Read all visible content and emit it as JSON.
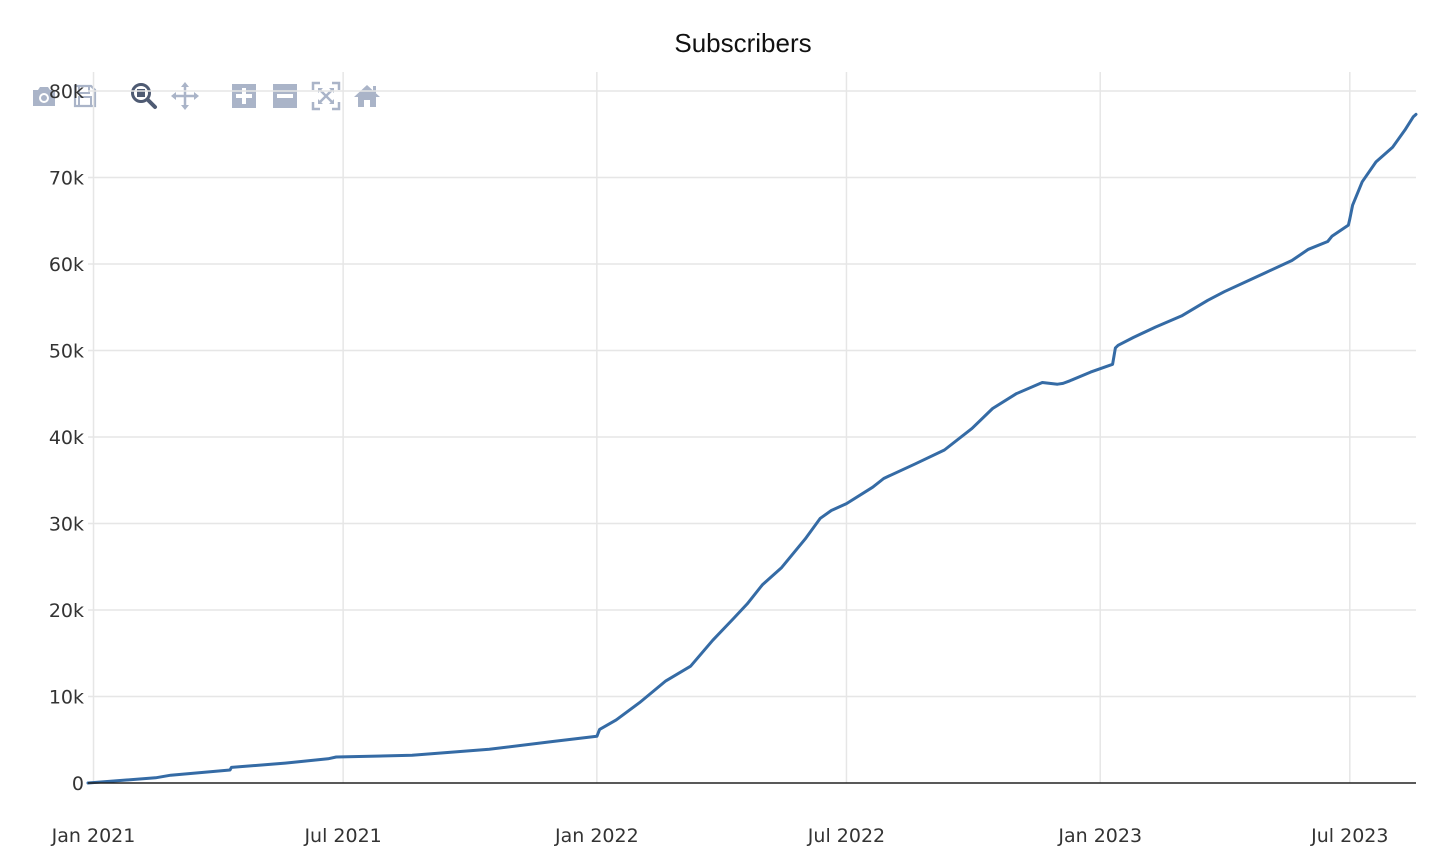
{
  "colors": {
    "series": "#356ba5",
    "modebar_icon": "#aab4c8",
    "modebar_active": "#4f5b73"
  },
  "modebar": {
    "buttons": [
      {
        "icon": "camera-icon",
        "title": "Download plot as a png"
      },
      {
        "icon": "save-icon",
        "title": "Save"
      },
      {
        "icon": "zoom-icon",
        "title": "Zoom",
        "active": true
      },
      {
        "icon": "pan-icon",
        "title": "Pan"
      },
      {
        "icon": "zoom-in-icon",
        "title": "Zoom in"
      },
      {
        "icon": "zoom-out-icon",
        "title": "Zoom out"
      },
      {
        "icon": "autoscale-icon",
        "title": "Autoscale"
      },
      {
        "icon": "home-icon",
        "title": "Reset axes"
      }
    ]
  },
  "chart_data": {
    "type": "line",
    "title": "Subscribers",
    "xlabel": "",
    "ylabel": "",
    "x_range": [
      "2020-12-28",
      "2023-08-18"
    ],
    "ylim": [
      0,
      80000
    ],
    "grid": true,
    "legend": "none",
    "x_ticks": [
      {
        "date": "2021-01-01",
        "label": "Jan 2021"
      },
      {
        "date": "2021-07-01",
        "label": "Jul 2021"
      },
      {
        "date": "2022-01-01",
        "label": "Jan 2022"
      },
      {
        "date": "2022-07-01",
        "label": "Jul 2022"
      },
      {
        "date": "2023-01-01",
        "label": "Jan 2023"
      },
      {
        "date": "2023-07-01",
        "label": "Jul 2023"
      }
    ],
    "y_ticks": [
      {
        "value": 0,
        "label": "0"
      },
      {
        "value": 10000,
        "label": "10k"
      },
      {
        "value": 20000,
        "label": "20k"
      },
      {
        "value": 30000,
        "label": "30k"
      },
      {
        "value": 40000,
        "label": "40k"
      },
      {
        "value": 50000,
        "label": "50k"
      },
      {
        "value": 60000,
        "label": "60k"
      },
      {
        "value": 70000,
        "label": "70k"
      },
      {
        "value": 80000,
        "label": "80k"
      }
    ],
    "series": [
      {
        "name": "Subscribers",
        "x": [
          "2020-12-28",
          "2021-02-15",
          "2021-02-26",
          "2021-04-10",
          "2021-04-11",
          "2021-05-20",
          "2021-06-20",
          "2021-06-26",
          "2021-08-20",
          "2021-10-15",
          "2021-11-30",
          "2022-01-01",
          "2022-01-03",
          "2022-01-15",
          "2022-02-01",
          "2022-02-20",
          "2022-03-10",
          "2022-03-26",
          "2022-04-10",
          "2022-04-20",
          "2022-05-01",
          "2022-05-15",
          "2022-06-01",
          "2022-06-12",
          "2022-06-20",
          "2022-07-01",
          "2022-07-20",
          "2022-07-28",
          "2022-08-01",
          "2022-08-20",
          "2022-09-10",
          "2022-09-30",
          "2022-10-15",
          "2022-11-01",
          "2022-11-20",
          "2022-12-01",
          "2022-12-05",
          "2022-12-10",
          "2022-12-25",
          "2023-01-10",
          "2023-01-12",
          "2023-01-14",
          "2023-01-25",
          "2023-02-10",
          "2023-03-01",
          "2023-03-20",
          "2023-04-01",
          "2023-04-20",
          "2023-05-01",
          "2023-05-20",
          "2023-06-01",
          "2023-06-15",
          "2023-06-18",
          "2023-06-30",
          "2023-07-01",
          "2023-07-03",
          "2023-07-10",
          "2023-07-20",
          "2023-08-01",
          "2023-08-10",
          "2023-08-16",
          "2023-08-18"
        ],
        "values": [
          0,
          600,
          900,
          1500,
          1800,
          2300,
          2800,
          3000,
          3200,
          3900,
          4800,
          5400,
          6200,
          7300,
          9300,
          11800,
          13500,
          16500,
          19000,
          20700,
          22900,
          24900,
          28200,
          30600,
          31500,
          32300,
          34200,
          35200,
          35500,
          36900,
          38500,
          41000,
          43300,
          45000,
          46300,
          46100,
          46200,
          46500,
          47500,
          48400,
          50300,
          50600,
          51500,
          52700,
          54000,
          55800,
          56800,
          58200,
          59000,
          60400,
          61700,
          62600,
          63200,
          64500,
          65200,
          66800,
          69500,
          71800,
          73500,
          75500,
          77000,
          77300
        ]
      }
    ]
  }
}
